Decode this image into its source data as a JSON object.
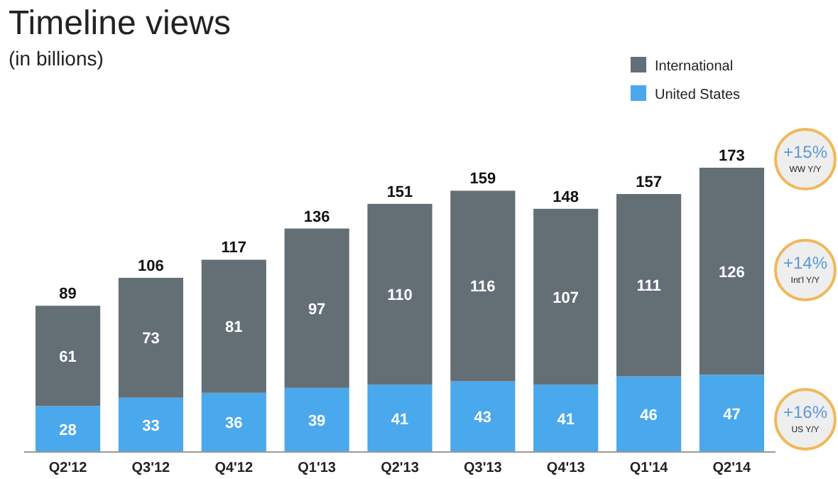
{
  "chart_data": {
    "type": "bar",
    "title": "Timeline views",
    "subtitle": "(in billions)",
    "categories": [
      "Q2'12",
      "Q3'12",
      "Q4'12",
      "Q1'13",
      "Q2'13",
      "Q3'13",
      "Q4'13",
      "Q1'14",
      "Q2'14"
    ],
    "stacked": true,
    "data_labels": true,
    "legend": "top right",
    "series": [
      {
        "name": "United States",
        "color": "#4aa8ec",
        "values": [
          28,
          33,
          36,
          39,
          41,
          43,
          41,
          46,
          47
        ]
      },
      {
        "name": "International",
        "color": "#636e75",
        "values": [
          61,
          73,
          81,
          97,
          110,
          116,
          107,
          111,
          126
        ]
      }
    ],
    "totals": [
      "89",
      "106",
      "117",
      "136",
      "151",
      "159",
      "148",
      "157",
      "173"
    ],
    "annotations": [
      "+15%\nWW Y/Y",
      "+14%\nInt'l Y/Y",
      "+16%\nUS Y/Y"
    ]
  }
}
